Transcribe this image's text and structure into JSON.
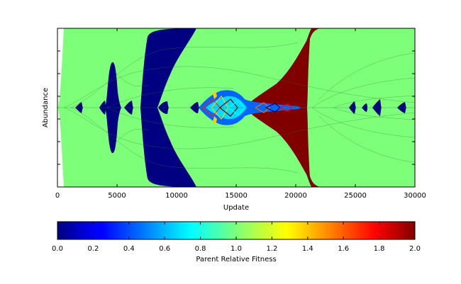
{
  "chart_data": [
    {
      "type": "area",
      "subtype": "muller-plot",
      "xlabel": "Update",
      "ylabel": "Abundance",
      "xlim": [
        0,
        30000
      ],
      "ylim": [
        0,
        1
      ],
      "x_ticks": [
        0,
        5000,
        10000,
        15000,
        20000,
        25000,
        30000
      ],
      "y_tick_labels_shown": false,
      "grid": false,
      "series": [
        {
          "color": "#000080",
          "value": 0.0,
          "x_range": [
            3700,
            5000
          ]
        },
        {
          "color": "#000080",
          "value": 0.0,
          "x_range": [
            7200,
            12000
          ]
        },
        {
          "color": "#800000",
          "value": 2.0,
          "x_range": [
            15800,
            21300
          ]
        },
        {
          "color": "#7dff7a",
          "value": 1.0,
          "x_range": [
            0,
            30000
          ]
        }
      ]
    },
    {
      "type": "heatmap",
      "subtype": "colorbar",
      "colormap": "jet",
      "title": "Parent Relative Fitness",
      "xlim": [
        0.0,
        2.0
      ],
      "tick_labels": [
        "0.0",
        "0.2",
        "0.4",
        "0.6",
        "0.8",
        "1.0",
        "1.2",
        "1.4",
        "1.6",
        "1.8",
        "2.0"
      ]
    }
  ]
}
